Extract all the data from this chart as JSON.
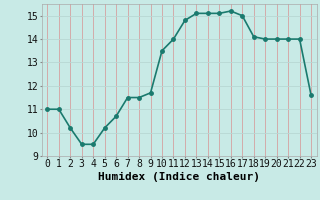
{
  "x": [
    0,
    1,
    2,
    3,
    4,
    5,
    6,
    7,
    8,
    9,
    10,
    11,
    12,
    13,
    14,
    15,
    16,
    17,
    18,
    19,
    20,
    21,
    22,
    23
  ],
  "y": [
    11.0,
    11.0,
    10.2,
    9.5,
    9.5,
    10.2,
    10.7,
    11.5,
    11.5,
    11.7,
    13.5,
    14.0,
    14.8,
    15.1,
    15.1,
    15.1,
    15.2,
    15.0,
    14.1,
    14.0,
    14.0,
    14.0,
    14.0,
    11.6
  ],
  "line_color": "#1a7a6e",
  "marker_color": "#1a7a6e",
  "bg_color": "#c8eae6",
  "vgrid_color": "#d4a0a0",
  "hgrid_color": "#b8d8d4",
  "xlabel": "Humidex (Indice chaleur)",
  "xlim": [
    -0.5,
    23.5
  ],
  "ylim": [
    9,
    15.5
  ],
  "yticks": [
    9,
    10,
    11,
    12,
    13,
    14,
    15
  ],
  "xticks": [
    0,
    1,
    2,
    3,
    4,
    5,
    6,
    7,
    8,
    9,
    10,
    11,
    12,
    13,
    14,
    15,
    16,
    17,
    18,
    19,
    20,
    21,
    22,
    23
  ],
  "xtick_labels": [
    "0",
    "1",
    "2",
    "3",
    "4",
    "5",
    "6",
    "7",
    "8",
    "9",
    "10",
    "11",
    "12",
    "13",
    "14",
    "15",
    "16",
    "17",
    "18",
    "19",
    "20",
    "21",
    "22",
    "23"
  ],
  "linewidth": 1.2,
  "markersize": 2.5,
  "xlabel_fontsize": 8,
  "tick_fontsize": 7,
  "ylabel_fontsize": 7
}
